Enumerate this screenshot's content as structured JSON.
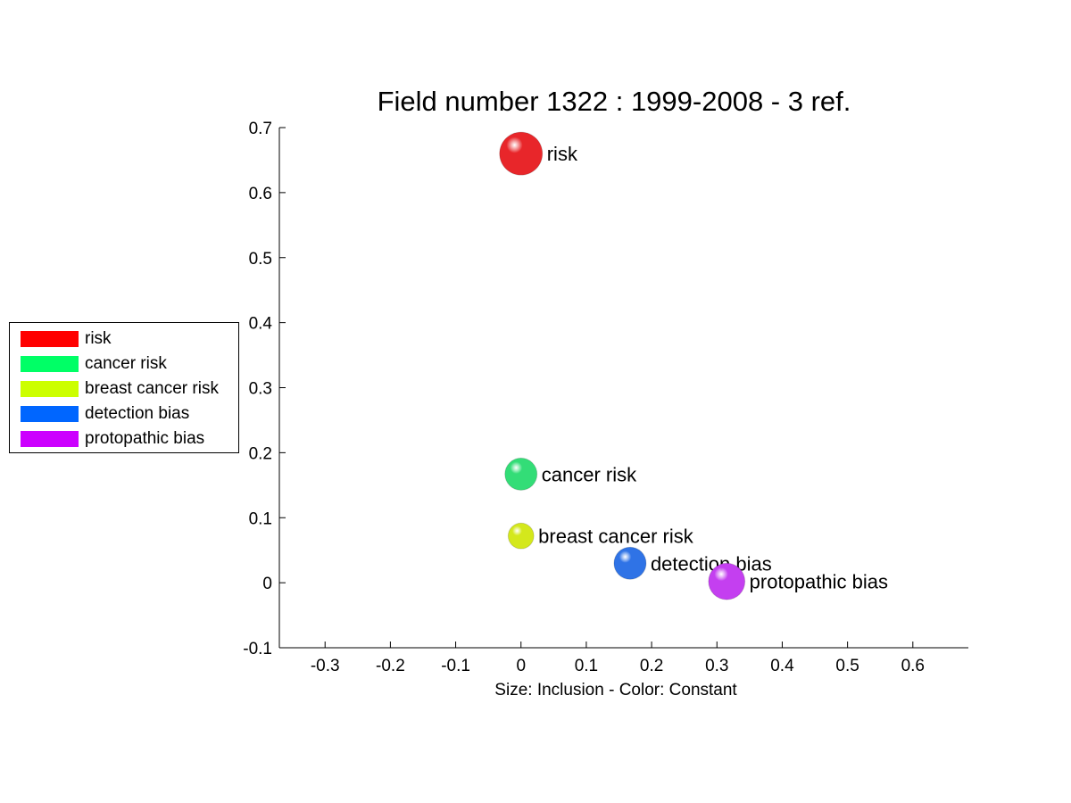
{
  "chart_data": {
    "type": "scatter",
    "title": "Field number 1322 : 1999-2008  - 3 ref.",
    "xlabel": "Size: Inclusion - Color: Constant",
    "ylabel": "",
    "xlim": [
      -0.37,
      0.685
    ],
    "ylim": [
      -0.1,
      0.7
    ],
    "xticks": [
      "-0.3",
      "-0.2",
      "-0.1",
      "0",
      "0.1",
      "0.2",
      "0.3",
      "0.4",
      "0.5",
      "0.6"
    ],
    "yticks": [
      "-0.1",
      "0",
      "0.1",
      "0.2",
      "0.3",
      "0.4",
      "0.5",
      "0.6",
      "0.7"
    ],
    "grid": false,
    "legend_position": "left",
    "points": [
      {
        "label": "risk",
        "x": 0.0,
        "y": 0.66,
        "size": 1.0,
        "color": "#e8262a"
      },
      {
        "label": "cancer risk",
        "x": 0.0,
        "y": 0.167,
        "size": 0.75,
        "color": "#33dd77"
      },
      {
        "label": "breast cancer risk",
        "x": 0.0,
        "y": 0.072,
        "size": 0.6,
        "color": "#d4e81c"
      },
      {
        "label": "detection bias",
        "x": 0.167,
        "y": 0.03,
        "size": 0.75,
        "color": "#2f73e6"
      },
      {
        "label": "protopathic bias",
        "x": 0.315,
        "y": 0.002,
        "size": 0.85,
        "color": "#c43ff0"
      }
    ],
    "legend": [
      {
        "label": "risk",
        "color": "#ff0000"
      },
      {
        "label": "cancer risk",
        "color": "#00ff66"
      },
      {
        "label": "breast cancer risk",
        "color": "#ccff00"
      },
      {
        "label": "detection bias",
        "color": "#0066ff"
      },
      {
        "label": "protopathic bias",
        "color": "#cc00ff"
      }
    ]
  }
}
